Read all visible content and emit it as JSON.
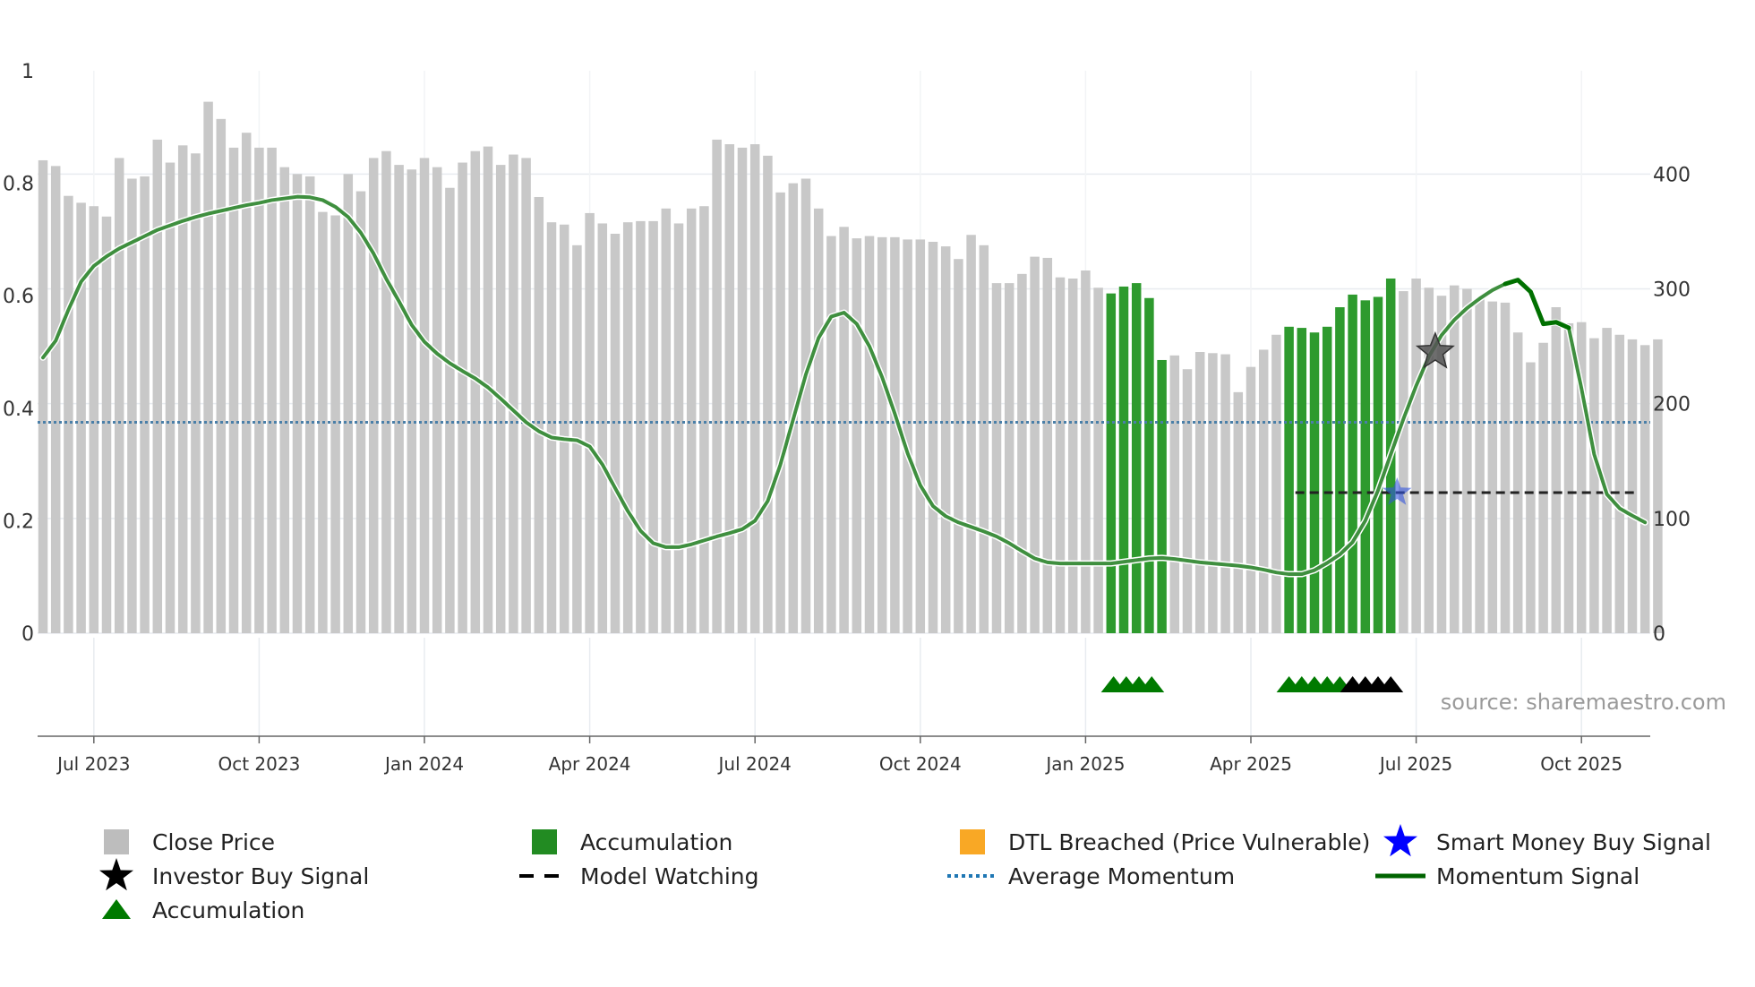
{
  "chart_data": {
    "type": "bar",
    "source_label": "source: sharemaestro.com",
    "left_axis": {
      "ylim": [
        0,
        1
      ],
      "ticks": [
        0,
        0.2,
        0.4,
        0.6,
        0.8,
        1
      ],
      "tick_labels": [
        "0",
        "0.2",
        "0.4",
        "0.6",
        "0.8",
        "1"
      ]
    },
    "right_axis": {
      "ylim": [
        0,
        490
      ],
      "ticks": [
        0,
        100,
        200,
        300,
        400
      ],
      "tick_labels": [
        "0",
        "100",
        "200",
        "300",
        "400"
      ]
    },
    "x_ticks": [
      {
        "label": "Jul 2023",
        "index": 4
      },
      {
        "label": "Oct 2023",
        "index": 17
      },
      {
        "label": "Jan 2024",
        "index": 30
      },
      {
        "label": "Apr 2024",
        "index": 43
      },
      {
        "label": "Jul 2024",
        "index": 56
      },
      {
        "label": "Oct 2024",
        "index": 69
      },
      {
        "label": "Jan 2025",
        "index": 82
      },
      {
        "label": "Apr 2025",
        "index": 95
      },
      {
        "label": "Jul 2025",
        "index": 108
      },
      {
        "label": "Oct 2025",
        "index": 121
      }
    ],
    "close_price": [
      412,
      407,
      381,
      375,
      372,
      363,
      414,
      396,
      398,
      430,
      410,
      425,
      418,
      463,
      448,
      423,
      436,
      423,
      423,
      406,
      400,
      398,
      367,
      364,
      400,
      385,
      414,
      420,
      408,
      404,
      414,
      406,
      388,
      410,
      420,
      424,
      408,
      417,
      414,
      380,
      358,
      356,
      338,
      366,
      357,
      348,
      358,
      359,
      359,
      370,
      357,
      370,
      372,
      430,
      426,
      423,
      426,
      416,
      384,
      392,
      396,
      370,
      346,
      354,
      344,
      346,
      345,
      345,
      343,
      343,
      341,
      337,
      326,
      347,
      338,
      305,
      305,
      313,
      328,
      327,
      310,
      309,
      316,
      301,
      296,
      302,
      305,
      292,
      238,
      242,
      230,
      245,
      244,
      243,
      210,
      232,
      247,
      260,
      267,
      266,
      262,
      267,
      284,
      295,
      290,
      293,
      309,
      298,
      309,
      301,
      294,
      303,
      300,
      292,
      289,
      288,
      262,
      236,
      253,
      284,
      270,
      271,
      257,
      266,
      260,
      256,
      251,
      256
    ],
    "accumulation_indices": [
      84,
      85,
      86,
      87,
      88,
      98,
      99,
      100,
      101,
      102,
      103,
      104,
      105,
      106
    ],
    "average_momentum": 0.375,
    "model_watching": {
      "from_index": 98.5,
      "to_index": 125.5,
      "value": 0.25
    },
    "momentum": [
      0.49,
      0.52,
      0.575,
      0.625,
      0.653,
      0.67,
      0.684,
      0.695,
      0.706,
      0.717,
      0.725,
      0.733,
      0.74,
      0.746,
      0.751,
      0.756,
      0.761,
      0.765,
      0.77,
      0.773,
      0.776,
      0.775,
      0.77,
      0.758,
      0.74,
      0.712,
      0.675,
      0.63,
      0.59,
      0.548,
      0.518,
      0.497,
      0.48,
      0.466,
      0.453,
      0.437,
      0.417,
      0.396,
      0.375,
      0.359,
      0.348,
      0.345,
      0.343,
      0.332,
      0.3,
      0.258,
      0.217,
      0.182,
      0.16,
      0.153,
      0.153,
      0.158,
      0.165,
      0.172,
      0.178,
      0.185,
      0.2,
      0.235,
      0.3,
      0.38,
      0.46,
      0.525,
      0.563,
      0.57,
      0.55,
      0.51,
      0.455,
      0.39,
      0.32,
      0.263,
      0.226,
      0.208,
      0.197,
      0.189,
      0.181,
      0.172,
      0.16,
      0.146,
      0.133,
      0.126,
      0.124,
      0.124,
      0.124,
      0.124,
      0.124,
      0.127,
      0.13,
      0.133,
      0.134,
      0.132,
      0.129,
      0.126,
      0.124,
      0.122,
      0.12,
      0.117,
      0.113,
      0.108,
      0.105,
      0.105,
      0.112,
      0.125,
      0.14,
      0.162,
      0.2,
      0.254,
      0.318,
      0.381,
      0.44,
      0.492,
      0.53,
      0.557,
      0.578,
      0.595,
      0.61,
      0.621,
      0.628,
      0.607,
      0.55,
      0.553,
      0.543,
      0.435,
      0.318,
      0.247,
      0.222,
      0.209,
      0.197
    ],
    "momentum_highlight": {
      "from_index": 115,
      "to_index": 120
    },
    "investor_buy_signal": {
      "index": 109.5,
      "value": 0.5
    },
    "smart_money_buy_signal": {
      "index": 106.5,
      "value": 0.25
    },
    "lower_markers": {
      "green": [
        84.2,
        85.2,
        86.2,
        87.2,
        98,
        99,
        100,
        101,
        102
      ],
      "black": [
        103,
        104,
        105,
        106
      ]
    },
    "legend": [
      {
        "label": "Close Price",
        "kind": "square",
        "color": "#bdbdbd"
      },
      {
        "label": "Accumulation",
        "kind": "square",
        "color": "#228B22"
      },
      {
        "label": "DTL Breached (Price Vulnerable)",
        "kind": "square",
        "color": "#f9a825"
      },
      {
        "label": "Smart Money Buy Signal",
        "kind": "star",
        "color": "#0000ff"
      },
      {
        "label": "Investor Buy Signal",
        "kind": "star",
        "color": "#000000"
      },
      {
        "label": "Model Watching",
        "kind": "dash",
        "color": "#000000"
      },
      {
        "label": "Average Momentum",
        "kind": "dot",
        "color": "#1f77b4"
      },
      {
        "label": "Momentum Signal",
        "kind": "line",
        "color": "#006400"
      },
      {
        "label": "Accumulation",
        "kind": "triangle",
        "color": "#007a00"
      }
    ],
    "colors": {
      "close_bar": "#c8c8c8",
      "accum_bar": "#2e9a2e",
      "momentum": "#3f8f3f",
      "momentum_hi": "#007000",
      "avg": "#4a7fa8",
      "grid": "#e8ecf0"
    }
  }
}
